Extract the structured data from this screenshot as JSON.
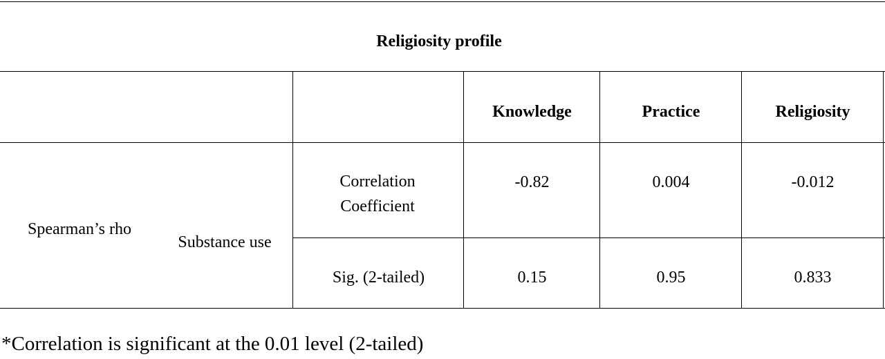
{
  "table": {
    "title": "Religiosity profile",
    "columns": [
      "Knowledge",
      "Practice",
      "Religiosity"
    ],
    "row_group": "Spearman’s rho",
    "variable": "Substance use",
    "rows": [
      {
        "label": "Correlation Coefficient",
        "values": [
          "-0.82",
          "0.004",
          "-0.012"
        ]
      },
      {
        "label": "Sig. (2-tailed)",
        "values": [
          "0.15",
          "0.95",
          "0.833"
        ]
      }
    ]
  },
  "footnote": "*Correlation is significant at the 0.01 level (2-tailed)"
}
